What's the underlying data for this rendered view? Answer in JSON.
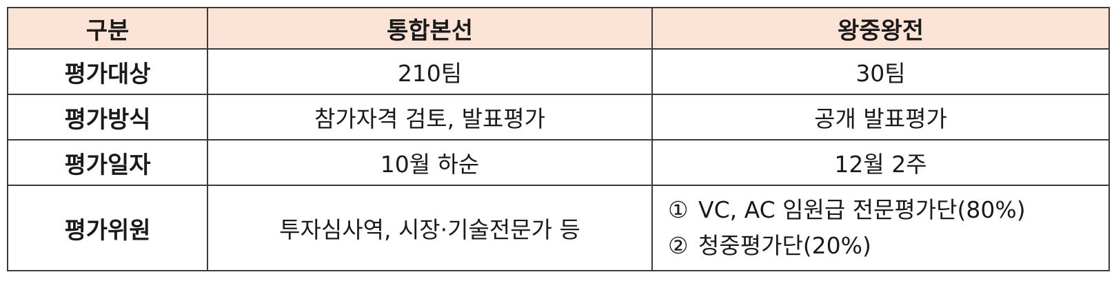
{
  "table": {
    "headers": [
      "구분",
      "통합본선",
      "왕중왕전"
    ],
    "rows": [
      {
        "label": "평가대상",
        "main": "210팀",
        "final": "30팀"
      },
      {
        "label": "평가방식",
        "main": "참가자격 검토, 발표평가",
        "final": "공개 발표평가"
      },
      {
        "label": "평가일자",
        "main": "10월 하순",
        "final": "12월 2주"
      },
      {
        "label": "평가위원",
        "main": "투자심사역, 시장·기술전문가 등",
        "final_items": [
          {
            "marker": "①",
            "text": "VC, AC 임원급 전문평가단(80%)"
          },
          {
            "marker": "②",
            "text": "청중평가단(20%)"
          }
        ]
      }
    ],
    "colors": {
      "header_bg": "#fbe4d5",
      "border": "#3a3a3a"
    }
  }
}
